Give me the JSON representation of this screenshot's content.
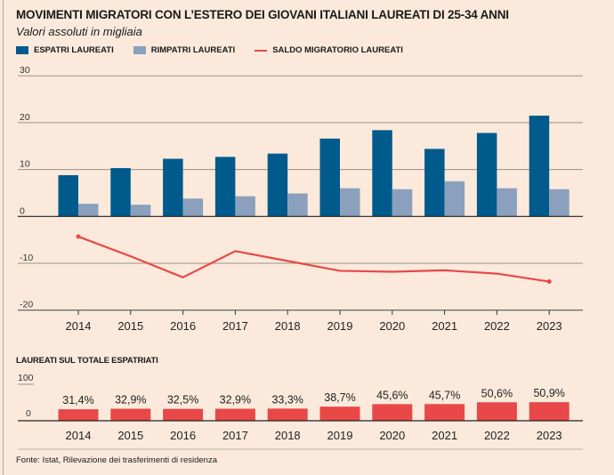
{
  "title": "MOVIMENTI MIGRATORI CON L’ESTERO DEI GIOVANI ITALIANI LAUREATI DI 25-34 ANNI",
  "subtitle": "Valori assoluti in migliaia",
  "source": "Fonte: Istat, Rilevazione dei trasferimenti di residenza",
  "colors": {
    "background": "#fbeadb",
    "espatri": "#005a8c",
    "rimpatri": "#8aa0bd",
    "saldo": "#e84848",
    "share": "#e84848"
  },
  "chart_data": [
    {
      "type": "bar",
      "categories": [
        "2014",
        "2015",
        "2016",
        "2017",
        "2018",
        "2019",
        "2020",
        "2021",
        "2022",
        "2023"
      ],
      "ylim": [
        -20,
        30
      ],
      "yticks": [
        "30",
        "20",
        "10",
        "0",
        "-10",
        "-20"
      ],
      "ytick_values": [
        30,
        20,
        10,
        0,
        -10,
        -20
      ],
      "grid": true,
      "legend_placement": "top-left",
      "series": [
        {
          "name": "ESPATRI LAUREATI",
          "type": "bar",
          "values": [
            8.8,
            10.3,
            12.3,
            12.7,
            13.4,
            16.6,
            18.4,
            14.4,
            17.8,
            21.5
          ]
        },
        {
          "name": "RIMPATRI LAUREATI",
          "type": "bar",
          "values": [
            2.7,
            2.5,
            3.8,
            4.3,
            4.9,
            6.0,
            5.8,
            7.5,
            6.0,
            5.8
          ]
        },
        {
          "name": "SALDO MIGRATORIO LAUREATI",
          "type": "line",
          "values": [
            -4.3,
            -8.5,
            -13.0,
            -7.4,
            -9.5,
            -11.6,
            -11.8,
            -11.5,
            -12.2,
            -13.9
          ]
        }
      ]
    },
    {
      "type": "bar",
      "title": "LAUREATI SUL TOTALE ESPATRIATI",
      "categories": [
        "2014",
        "2015",
        "2016",
        "2017",
        "2018",
        "2019",
        "2020",
        "2021",
        "2022",
        "2023"
      ],
      "ylim": [
        0,
        100
      ],
      "yticks": [
        "100",
        "0"
      ],
      "values": [
        31.4,
        32.9,
        32.5,
        32.9,
        33.3,
        38.7,
        45.6,
        45.7,
        50.6,
        50.9
      ],
      "labels": [
        "31,4%",
        "32,9%",
        "32,5%",
        "32,9%",
        "33,3%",
        "38,7%",
        "45,6%",
        "45,7%",
        "50,6%",
        "50,9%"
      ]
    }
  ]
}
